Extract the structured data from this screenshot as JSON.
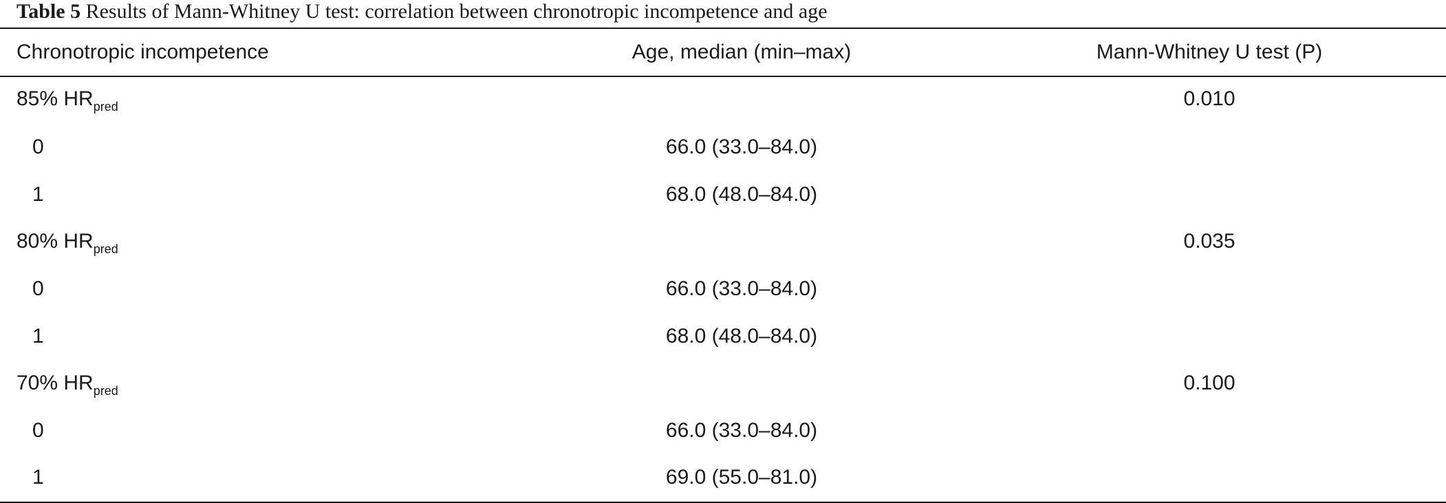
{
  "caption": {
    "label": "Table 5",
    "text": " Results of Mann-Whitney U test: correlation between chronotropic incompetence and age"
  },
  "table": {
    "headers": [
      "Chronotropic incompetence",
      "Age, median (min–max)",
      "Mann-Whitney U test (P)"
    ],
    "groups": [
      {
        "label": "85% HR",
        "sub": "pred",
        "p": "0.010",
        "rows": [
          {
            "level": "0",
            "age": "66.0 (33.0–84.0)"
          },
          {
            "level": "1",
            "age": "68.0 (48.0–84.0)"
          }
        ]
      },
      {
        "label": "80% HR",
        "sub": "pred",
        "p": "0.035",
        "rows": [
          {
            "level": "0",
            "age": "66.0 (33.0–84.0)"
          },
          {
            "level": "1",
            "age": "68.0 (48.0–84.0)"
          }
        ]
      },
      {
        "label": "70% HR",
        "sub": "pred",
        "p": "0.100",
        "rows": [
          {
            "level": "0",
            "age": "66.0 (33.0–84.0)"
          },
          {
            "level": "1",
            "age": "69.0 (55.0–81.0)"
          }
        ]
      }
    ]
  }
}
